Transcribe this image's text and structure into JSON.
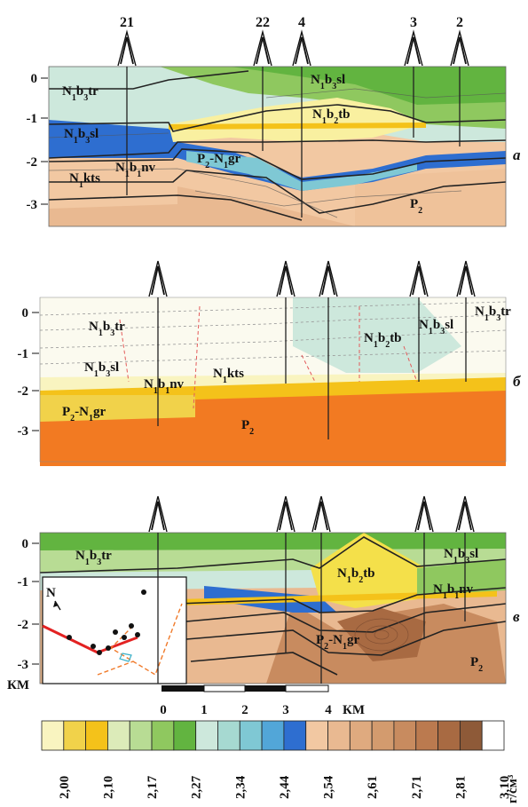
{
  "wells_top": [
    "21",
    "22",
    "4",
    "3",
    "2"
  ],
  "depth_ticks": [
    "0",
    "-1",
    "-2",
    "-3"
  ],
  "panel_letters": [
    "а",
    "б",
    "в"
  ],
  "units": {
    "depth": "КМ",
    "scale": "КМ",
    "density": "г/см³"
  },
  "scale_labels": [
    "0",
    "1",
    "2",
    "3",
    "4"
  ],
  "inset": {
    "north_label": "N"
  },
  "density_legend": {
    "labels": [
      "2,00",
      "2,10",
      "2,17",
      "2,27",
      "2,34",
      "2,44",
      "2,54",
      "2,61",
      "2,71",
      "2,81",
      "3,10"
    ],
    "colors": [
      "#f9f4c0",
      "#f1d24a",
      "#f4c21a",
      "#dcebb9",
      "#b8dc94",
      "#8fc85f",
      "#62b440",
      "#cde8dc",
      "#a6d9d1",
      "#7fc8d4",
      "#52a6d8",
      "#2e6ed0",
      "#f2c8a2",
      "#e9b991",
      "#dfaa7f",
      "#d39b6e",
      "#c88b5f",
      "#bb7a4f",
      "#a86a42",
      "#8e5a38",
      "#ffffff"
    ]
  },
  "panel_a": {
    "labels": [
      {
        "base": "N",
        "sub": "1",
        "mid": "b",
        "sub2": "3",
        "tail": "tr"
      },
      {
        "base": "N",
        "sub": "1",
        "mid": "b",
        "sub2": "3",
        "tail": "sl"
      },
      {
        "base": "N",
        "sub": "1",
        "mid": "b",
        "sub2": "3",
        "tail": "sl"
      },
      {
        "base": "N",
        "sub": "1",
        "mid": "b",
        "sub2": "2",
        "tail": "tb"
      },
      {
        "base": "N",
        "sub": "1",
        "mid": "b",
        "sub2": "1",
        "tail": "nv"
      },
      {
        "base": "N",
        "sub": "1",
        "mid": "kts",
        "sub2": "",
        "tail": ""
      },
      {
        "base": "P",
        "sub": "2",
        "mid": "-N",
        "sub2": "1",
        "tail": "gr"
      },
      {
        "base": "P",
        "sub": "2",
        "mid": "",
        "sub2": "",
        "tail": ""
      }
    ]
  },
  "panel_b": {
    "labels": [
      {
        "base": "N",
        "sub": "1",
        "mid": "b",
        "sub2": "3",
        "tail": "tr"
      },
      {
        "base": "N",
        "sub": "1",
        "mid": "b",
        "sub2": "3",
        "tail": "sl"
      },
      {
        "base": "N",
        "sub": "1",
        "mid": "b",
        "sub2": "1",
        "tail": "nv"
      },
      {
        "base": "N",
        "sub": "1",
        "mid": "kts",
        "sub2": "",
        "tail": ""
      },
      {
        "base": "P",
        "sub": "2",
        "mid": "-N",
        "sub2": "1",
        "tail": "gr"
      },
      {
        "base": "P",
        "sub": "2",
        "mid": "",
        "sub2": "",
        "tail": ""
      },
      {
        "base": "N",
        "sub": "1",
        "mid": "b",
        "sub2": "2",
        "tail": "tb"
      },
      {
        "base": "N",
        "sub": "1",
        "mid": "b",
        "sub2": "3",
        "tail": "sl"
      },
      {
        "base": "N",
        "sub": "1",
        "mid": "b",
        "sub2": "3",
        "tail": "tr"
      }
    ]
  },
  "panel_c": {
    "labels": [
      {
        "base": "N",
        "sub": "1",
        "mid": "b",
        "sub2": "3",
        "tail": "tr"
      },
      {
        "base": "N",
        "sub": "1",
        "mid": "b",
        "sub2": "2",
        "tail": "tb"
      },
      {
        "base": "N",
        "sub": "1",
        "mid": "b",
        "sub2": "3",
        "tail": "sl"
      },
      {
        "base": "N",
        "sub": "1",
        "mid": "b",
        "sub2": "1",
        "tail": "nv"
      },
      {
        "base": "P",
        "sub": "2",
        "mid": "-N",
        "sub2": "1",
        "tail": "gr"
      },
      {
        "base": "P",
        "sub": "2",
        "mid": "",
        "sub2": "",
        "tail": ""
      }
    ]
  }
}
